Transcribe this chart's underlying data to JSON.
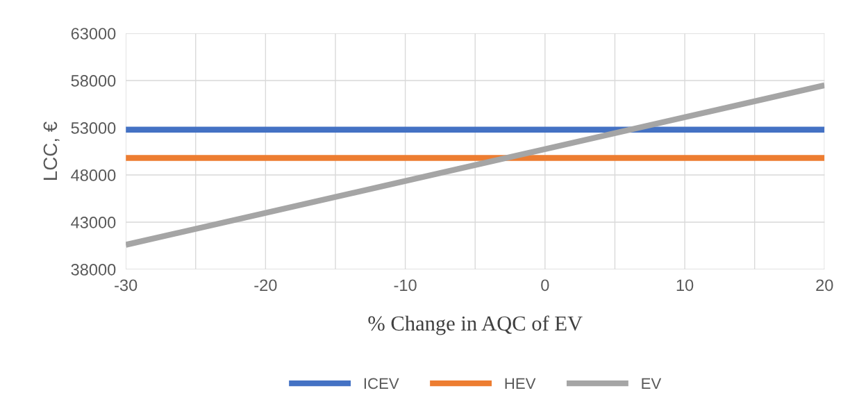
{
  "chart_data": {
    "type": "line",
    "xlabel": "% Change in AQC of EV",
    "ylabel": "LCC, €",
    "x": [
      -30,
      20
    ],
    "series": [
      {
        "name": "ICEV",
        "color": "#4472c4",
        "values": [
          52800,
          52800
        ]
      },
      {
        "name": "HEV",
        "color": "#ed7d31",
        "values": [
          49800,
          49800
        ]
      },
      {
        "name": "EV",
        "color": "#a5a5a5",
        "values": [
          40600,
          57500
        ]
      }
    ],
    "xlim": [
      -30,
      20
    ],
    "xticks": [
      -30,
      {
        "value": -25,
        "label": null
      },
      -20,
      {
        "value": -15,
        "label": null
      },
      -10,
      {
        "value": -5,
        "label": null
      },
      0,
      {
        "value": 5,
        "label": null
      },
      10,
      {
        "value": 15,
        "label": null
      },
      20
    ],
    "ylim": [
      38000,
      63000
    ],
    "yticks": [
      38000,
      43000,
      48000,
      53000,
      58000,
      63000
    ],
    "grid": true,
    "legend": "bottom",
    "marker": "none",
    "line_style": "solid"
  }
}
